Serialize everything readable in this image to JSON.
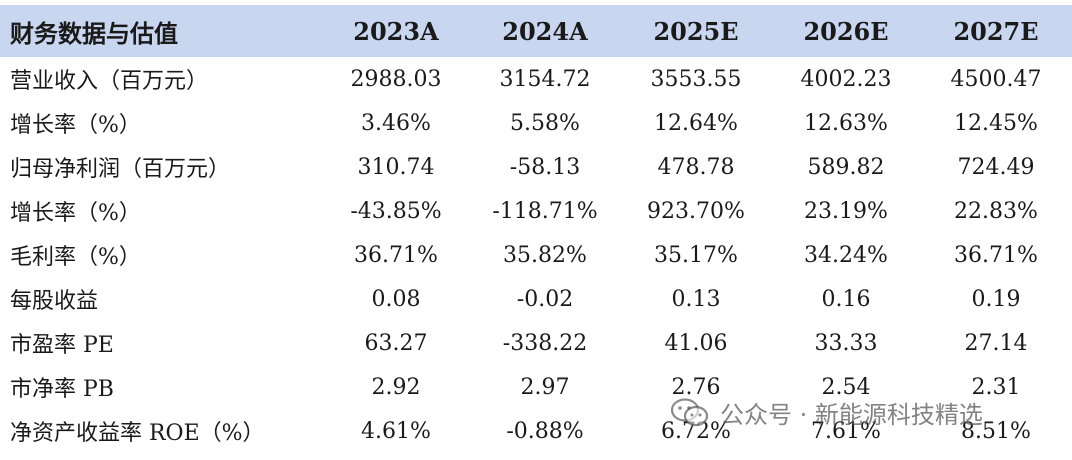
{
  "table": {
    "header": [
      "财务数据与估值",
      "2023A",
      "2024A",
      "2025E",
      "2026E",
      "2027E"
    ],
    "rows": [
      [
        "营业收入（百万元）",
        "2988.03",
        "3154.72",
        "3553.55",
        "4002.23",
        "4500.47"
      ],
      [
        "增长率（%）",
        "3.46%",
        "5.58%",
        "12.64%",
        "12.63%",
        "12.45%"
      ],
      [
        "归母净利润（百万元）",
        "310.74",
        "-58.13",
        "478.78",
        "589.82",
        "724.49"
      ],
      [
        "增长率（%）",
        "-43.85%",
        "-118.71%",
        "923.70%",
        "23.19%",
        "22.83%"
      ],
      [
        "毛利率（%）",
        "36.71%",
        "35.82%",
        "35.17%",
        "34.24%",
        "36.71%"
      ],
      [
        "每股收益",
        "0.08",
        "-0.02",
        "0.13",
        "0.16",
        "0.19"
      ],
      [
        "市盈率 PE",
        "63.27",
        "-338.22",
        "41.06",
        "33.33",
        "27.14"
      ],
      [
        "市净率 PB",
        "2.92",
        "2.97",
        "2.76",
        "2.54",
        "2.31"
      ],
      [
        "净资产收益率 ROE（%）",
        "4.61%",
        "-0.88%",
        "6.72%",
        "7.61%",
        "8.51%"
      ]
    ]
  },
  "watermark": {
    "text": "公众号 · 新能源科技精选",
    "icon": "wechat-icon"
  },
  "colors": {
    "header_bg": "#c9d6f0",
    "text": "#1a1a1a"
  }
}
